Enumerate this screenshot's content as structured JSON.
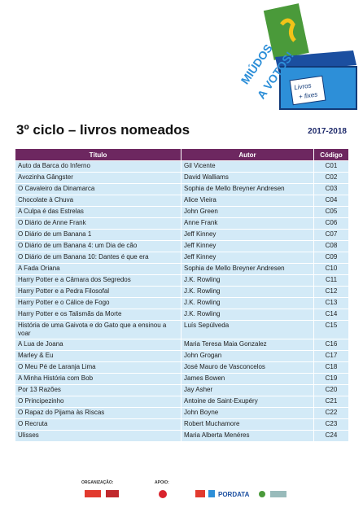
{
  "header": {
    "title": "3º ciclo – livros nomeados",
    "year": "2017-2018"
  },
  "logo": {
    "line1": "MIÚDOS",
    "line2": "A VOTOS!",
    "box": [
      "Livros",
      "+ fixes"
    ]
  },
  "table": {
    "columns": [
      "Título",
      "Autor",
      "Código"
    ],
    "rows": [
      [
        "Auto da Barca do Inferno",
        "Gil Vicente",
        "C01"
      ],
      [
        "Avozinha Gângster",
        "David Walliams",
        "C02"
      ],
      [
        "O Cavaleiro da Dinamarca",
        "Sophia de Mello Breyner Andresen",
        "C03"
      ],
      [
        "Chocolate à Chuva",
        "Alice Vieira",
        "C04"
      ],
      [
        "A Culpa é das Estrelas",
        "John Green",
        "C05"
      ],
      [
        "O Diário de Anne Frank",
        "Anne Frank",
        "C06"
      ],
      [
        "O Diário de um Banana 1",
        "Jeff Kinney",
        "C07"
      ],
      [
        "O Diário de um Banana 4: um Dia de cão",
        "Jeff Kinney",
        "C08"
      ],
      [
        "O Diário de um Banana 10: Dantes é que era",
        "Jeff Kinney",
        "C09"
      ],
      [
        "A Fada Oriana",
        "Sophia de Mello Breyner Andresen",
        "C10"
      ],
      [
        "Harry Potter e a Câmara dos Segredos",
        "J.K. Rowling",
        "C11"
      ],
      [
        "Harry Potter e a Pedra Filosofal",
        "J.K. Rowling",
        "C12"
      ],
      [
        "Harry Potter e o Cálice de Fogo",
        "J.K. Rowling",
        "C13"
      ],
      [
        "Harry Potter e os Talismãs da Morte",
        "J.K. Rowling",
        "C14"
      ],
      [
        "História de uma Gaivota e do Gato que a ensinou a voar",
        "Luís Sepúlveda",
        "C15"
      ],
      [
        "A Lua de Joana",
        "Maria Teresa Maia Gonzalez",
        "C16"
      ],
      [
        "Marley & Eu",
        "John Grogan",
        "C17"
      ],
      [
        "O Meu Pé de Laranja Lima",
        "José Mauro de Vasconcelos",
        "C18"
      ],
      [
        "A Minha História com Bob",
        "James Bowen",
        "C19"
      ],
      [
        "Por 13 Razões",
        "Jay Asher",
        "C20"
      ],
      [
        "O Principezinho",
        "Antoine de Saint-Exupéry",
        "C21"
      ],
      [
        "O Rapaz do Pijama às Riscas",
        "John Boyne",
        "C22"
      ],
      [
        "O Recruta",
        "Robert Muchamore",
        "C23"
      ],
      [
        "Ulisses",
        "Maria Alberta Menéres",
        "C24"
      ]
    ]
  },
  "footer": {
    "organization": "ORGANIZAÇÃO:",
    "support": "APOIO:",
    "pordata": "PORDATA"
  }
}
